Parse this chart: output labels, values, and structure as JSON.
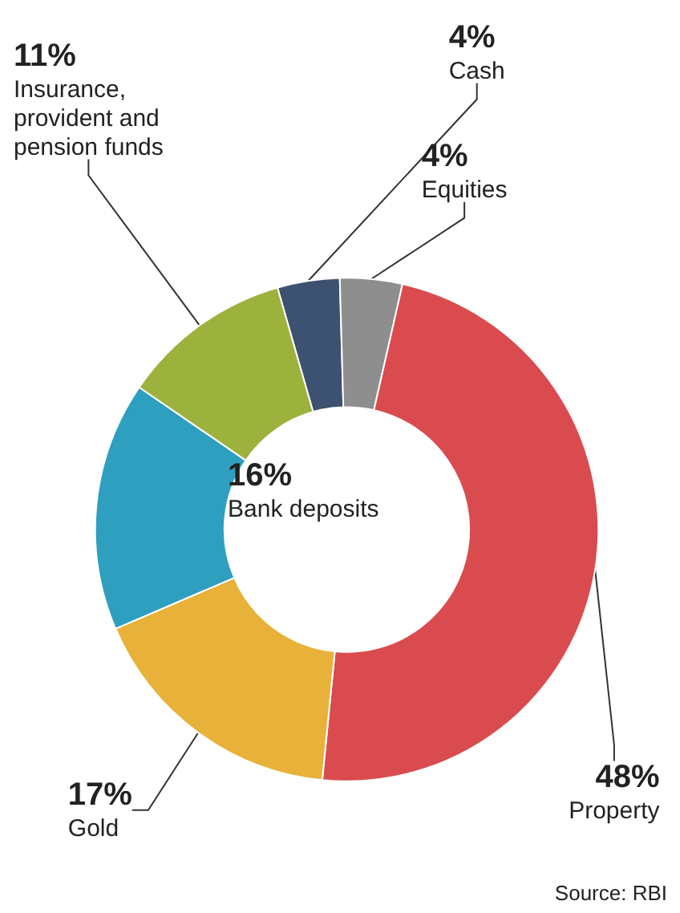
{
  "chart_data": {
    "type": "donut",
    "categories": [
      "Cash",
      "Equities",
      "Property",
      "Gold",
      "Bank deposits",
      "Insurance, provident and pension funds"
    ],
    "values": [
      4,
      4,
      48,
      17,
      16,
      11
    ],
    "value_labels": [
      "4%",
      "4%",
      "48%",
      "17%",
      "16%",
      "11%"
    ],
    "colors": [
      "#3d5170",
      "#8e8e8e",
      "#d94b4f",
      "#e8b23a",
      "#2e9fbf",
      "#9cb23c"
    ],
    "annotations": [
      "Source: RBI"
    ]
  }
}
